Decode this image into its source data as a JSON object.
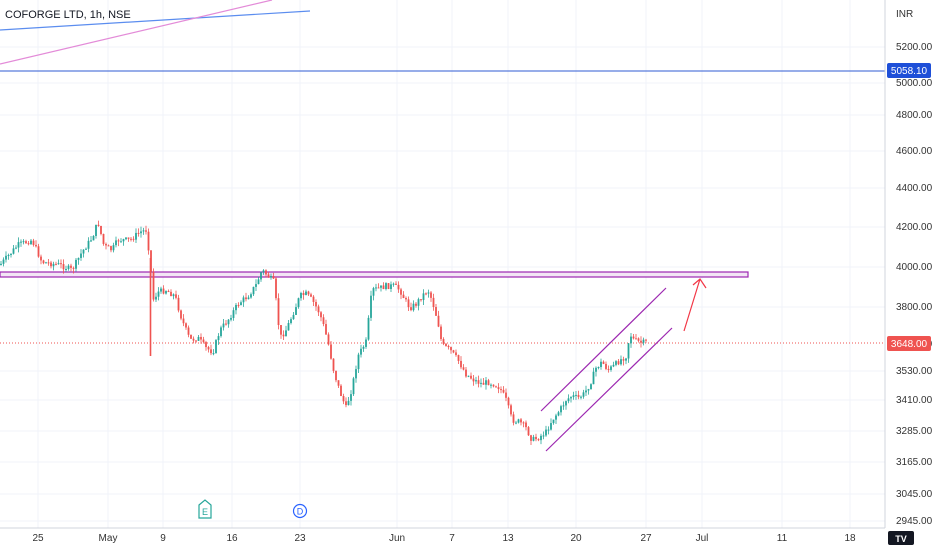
{
  "header": {
    "symbol_title": "COFORGE LTD, 1h, NSE"
  },
  "price_axis": {
    "currency": "INR",
    "ticks": [
      "5200.00",
      "5000.00",
      "4800.00",
      "4600.00",
      "4400.00",
      "4200.00",
      "4000.00",
      "3800.00",
      "3648.00",
      "3530.00",
      "3410.00",
      "3285.00",
      "3165.00",
      "3045.00",
      "2945.00"
    ],
    "blue_line_label": "5058.10",
    "last_price_label": "3648.00"
  },
  "time_axis": {
    "ticks": [
      "25",
      "May",
      "9",
      "16",
      "23",
      "Jun",
      "7",
      "13",
      "20",
      "27",
      "Jul",
      "11",
      "18"
    ]
  },
  "event_markers": [
    {
      "label": "E",
      "kind": "earnings"
    },
    {
      "label": "D",
      "kind": "dividend"
    }
  ],
  "colors": {
    "up": "#26a69a",
    "down": "#ef5350",
    "accent_blue": "#2962ff",
    "channel": "#9c27b0",
    "arrow": "#f23645",
    "background": "#ffffff"
  },
  "logo": "TV"
}
